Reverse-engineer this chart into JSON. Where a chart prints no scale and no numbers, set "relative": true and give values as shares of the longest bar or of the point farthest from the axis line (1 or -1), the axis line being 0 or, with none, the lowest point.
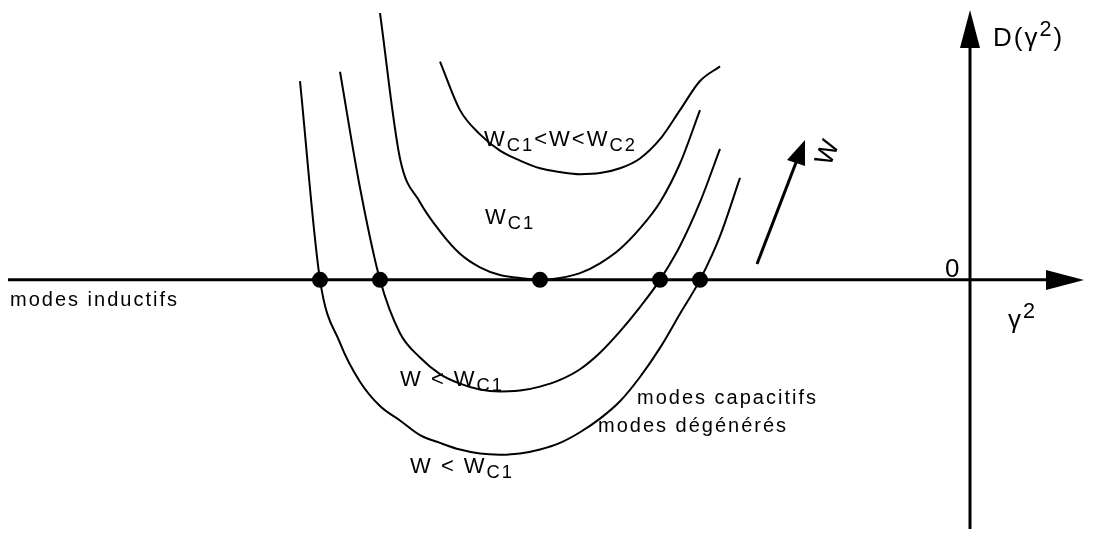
{
  "chart_data": {
    "type": "line",
    "relative": true,
    "xlabel": "γ$^{2}$",
    "ylabel": "D(γ$^{2}$)",
    "categories": [
      null,
      null,
      null,
      null,
      null,
      null,
      null,
      null,
      null,
      null,
      null,
      null,
      null,
      null,
      null,
      null,
      null,
      null,
      null,
      null,
      null,
      null,
      null,
      null,
      null,
      null,
      null,
      null,
      null,
      null,
      null,
      null,
      null,
      null,
      null,
      null,
      null,
      null,
      null
    ],
    "series": [
      {
        "name": "W$_{C1}$<W<W$_{C2}$",
        "color": "#000000",
        "values": [
          null,
          null,
          null,
          null,
          null,
          null,
          null,
          0.818,
          0.636,
          0.545,
          0.484,
          0.447,
          0.418,
          0.404,
          0.396,
          0.4,
          0.418,
          0.455,
          0.527,
          0.636,
          0.745,
          0.8,
          null,
          null,
          null,
          null,
          null,
          null,
          null,
          null,
          null,
          null,
          null,
          null,
          null,
          null,
          null,
          null,
          null
        ]
      },
      {
        "name": "W$_{C1}$",
        "color": "#000000",
        "values": [
          null,
          null,
          null,
          null,
          1.0,
          0.455,
          0.291,
          0.182,
          0.098,
          0.047,
          0.018,
          0.007,
          0,
          0.007,
          0.025,
          0.062,
          0.116,
          0.193,
          0.291,
          0.436,
          0.636,
          null,
          null,
          null,
          null,
          null,
          null,
          null,
          null,
          null,
          null,
          null,
          null,
          null,
          null,
          null,
          null,
          null,
          null
        ]
      },
      {
        "name": "W < W$_{C1}$",
        "color": "#000000",
        "values": [
          null,
          null,
          0.78,
          0.345,
          0,
          -0.2,
          -0.291,
          -0.353,
          -0.389,
          -0.411,
          -0.418,
          -0.415,
          -0.4,
          -0.375,
          -0.335,
          -0.273,
          -0.193,
          -0.102,
          0,
          0.127,
          0.291,
          0.491,
          null,
          null,
          null,
          null,
          null,
          null,
          null,
          null,
          null,
          null,
          null,
          null,
          null,
          null,
          null,
          null,
          null
        ]
      },
      {
        "name": "W < W$_{C1}$",
        "color": "#000000",
        "values": [
          0.745,
          0,
          -0.236,
          -0.382,
          -0.473,
          -0.527,
          -0.582,
          -0.611,
          -0.636,
          -0.651,
          -0.655,
          -0.651,
          -0.636,
          -0.611,
          -0.571,
          -0.52,
          -0.455,
          -0.364,
          -0.255,
          -0.127,
          0,
          0.164,
          0.382,
          null,
          null,
          null,
          null,
          null,
          null,
          null,
          null,
          null,
          null,
          null,
          null,
          null,
          null,
          null,
          null
        ]
      }
    ],
    "annotations": [
      "modes inductifs",
      "modes capacitifs",
      "modes dégénérés",
      "W",
      "0"
    ]
  }
}
